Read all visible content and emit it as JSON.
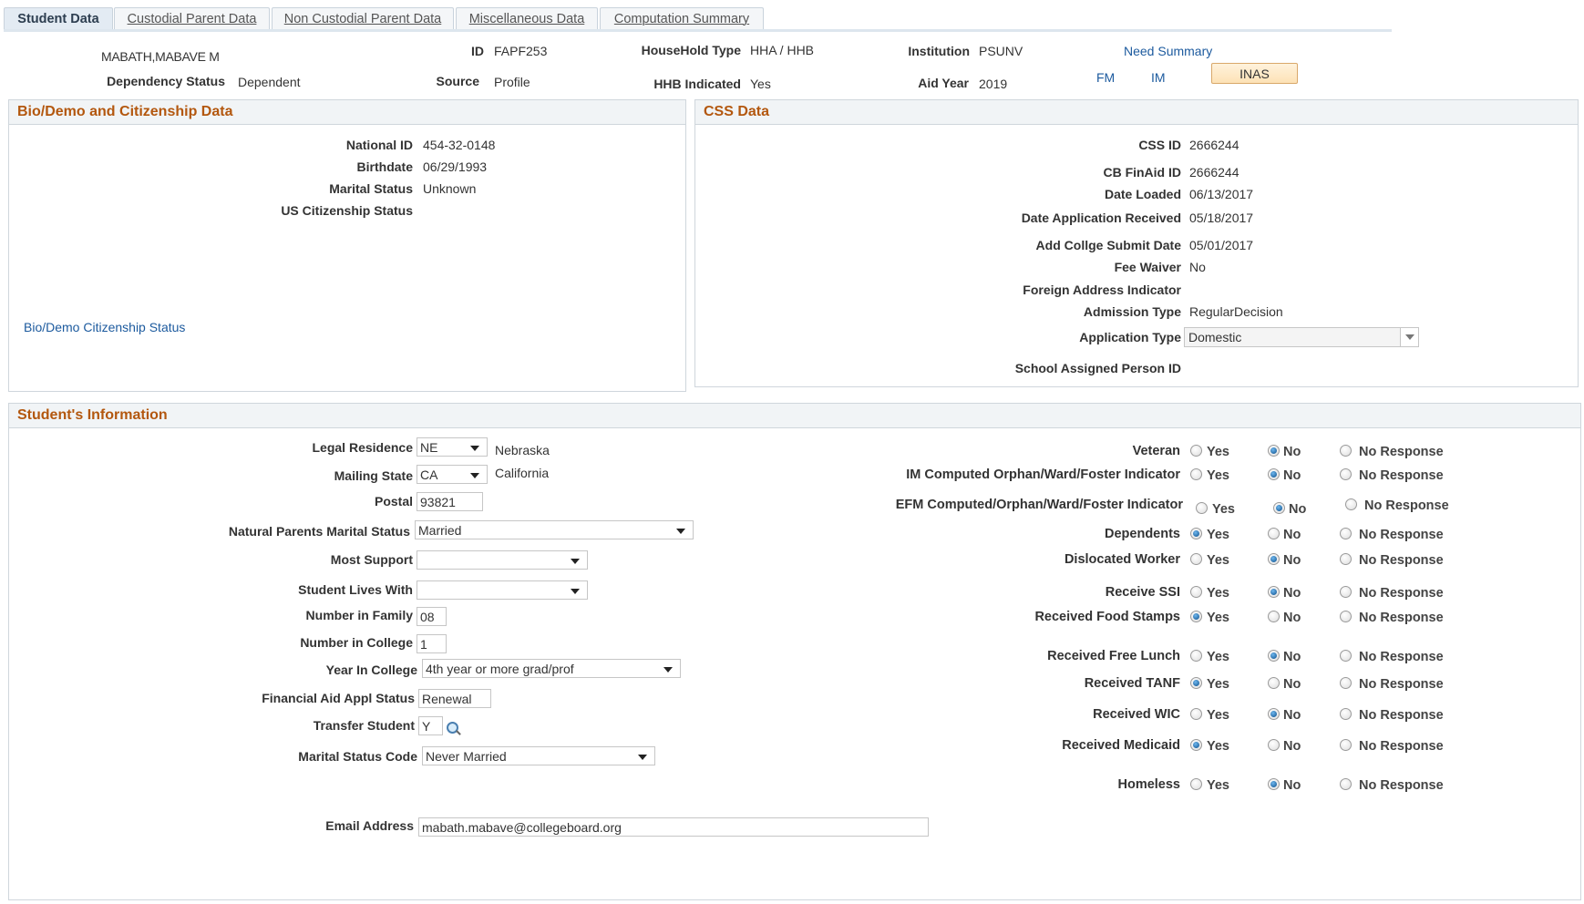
{
  "tabs": [
    {
      "label": "Student Data",
      "active": true
    },
    {
      "label": "Custodial Parent Data",
      "active": false
    },
    {
      "label": "Non Custodial Parent Data",
      "active": false
    },
    {
      "label": "Miscellaneous Data",
      "active": false
    },
    {
      "label": "Computation Summary",
      "active": false
    }
  ],
  "header": {
    "name": "MABATH,MABAVE M",
    "id_label": "ID",
    "id": "FAPF253",
    "household_type_label": "HouseHold Type",
    "household_type": "HHA / HHB",
    "institution_label": "Institution",
    "institution": "PSUNV",
    "need_summary": "Need Summary",
    "dependency_status_label": "Dependency Status",
    "dependency_status": "Dependent",
    "source_label": "Source",
    "source": "Profile",
    "hhb_indicated_label": "HHB Indicated",
    "hhb_indicated": "Yes",
    "aid_year_label": "Aid Year",
    "aid_year": "2019",
    "fm": "FM",
    "im": "IM",
    "inas": "INAS"
  },
  "bio": {
    "title": "Bio/Demo and Citizenship Data",
    "fields": [
      {
        "label": "National ID",
        "value": "454-32-0148"
      },
      {
        "label": "Birthdate",
        "value": "06/29/1993"
      },
      {
        "label": "Marital Status",
        "value": "Unknown"
      },
      {
        "label": "US Citizenship Status",
        "value": ""
      }
    ],
    "link": "Bio/Demo Citizenship Status"
  },
  "css": {
    "title": "CSS Data",
    "fields": [
      {
        "label": "CSS ID",
        "value": "2666244"
      },
      {
        "label": "CB FinAid ID",
        "value": "2666244"
      },
      {
        "label": "Date Loaded",
        "value": "06/13/2017"
      },
      {
        "label": "Date Application Received",
        "value": "05/18/2017"
      },
      {
        "label": "Add Collge Submit Date",
        "value": "05/01/2017"
      },
      {
        "label": "Fee Waiver",
        "value": "No"
      },
      {
        "label": "Foreign Address Indicator",
        "value": ""
      },
      {
        "label": "Admission Type",
        "value": "RegularDecision"
      },
      {
        "label": "Application Type",
        "value": "Domestic"
      },
      {
        "label": "School Assigned Person ID",
        "value": ""
      }
    ]
  },
  "student": {
    "title": "Student's Information",
    "legal_residence": {
      "label": "Legal Residence",
      "value": "NE",
      "desc": "Nebraska"
    },
    "mailing_state": {
      "label": "Mailing State",
      "value": "CA",
      "desc": "California"
    },
    "postal": {
      "label": "Postal",
      "value": "93821"
    },
    "natural_parents_marital_status": {
      "label": "Natural Parents Marital Status",
      "value": "Married"
    },
    "most_support": {
      "label": "Most Support",
      "value": ""
    },
    "student_lives_with": {
      "label": "Student Lives With",
      "value": ""
    },
    "number_in_family": {
      "label": "Number in Family",
      "value": "08"
    },
    "number_in_college": {
      "label": "Number in College",
      "value": "1"
    },
    "year_in_college": {
      "label": "Year In College",
      "value": "4th year or more grad/prof"
    },
    "fin_aid_appl_status": {
      "label": "Financial Aid Appl Status",
      "value": "Renewal"
    },
    "transfer_student": {
      "label": "Transfer Student",
      "value": "Y"
    },
    "marital_status_code": {
      "label": "Marital Status Code",
      "value": "Never Married"
    },
    "email": {
      "label": "Email Address",
      "value": "mabath.mabave@collegeboard.org"
    },
    "radio_options": [
      "Yes",
      "No",
      "No Response"
    ],
    "radios": [
      {
        "label": "Veteran",
        "selected": "No"
      },
      {
        "label": "IM Computed Orphan/Ward/Foster Indicator",
        "selected": "No"
      },
      {
        "label": "EFM Computed/Orphan/Ward/Foster Indicator",
        "selected": "No"
      },
      {
        "label": "Dependents",
        "selected": "Yes"
      },
      {
        "label": "Dislocated Worker",
        "selected": "No"
      },
      {
        "label": "Receive SSI",
        "selected": "No"
      },
      {
        "label": "Received Food Stamps",
        "selected": "Yes"
      },
      {
        "label": "Received Free Lunch",
        "selected": "No"
      },
      {
        "label": "Received TANF",
        "selected": "Yes"
      },
      {
        "label": "Received WIC",
        "selected": "No"
      },
      {
        "label": "Received Medicaid",
        "selected": "Yes"
      },
      {
        "label": "Homeless",
        "selected": "No"
      }
    ]
  },
  "colors": {
    "section_title": "#b3570e",
    "link": "#1c5a9e",
    "inas_button": "#fde2b6"
  }
}
